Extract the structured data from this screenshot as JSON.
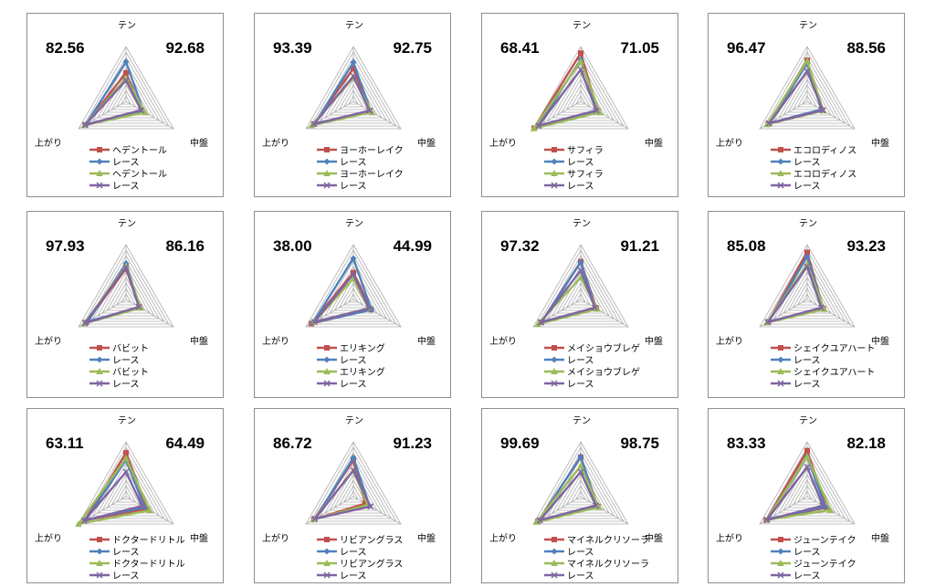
{
  "axes": [
    "テン",
    "中盤",
    "上がり"
  ],
  "series_colors": [
    "#c0504d",
    "#4f81bd",
    "#9bbb59",
    "#8064a2"
  ],
  "panels": [
    {
      "left_value": "82.56",
      "right_value": "92.68",
      "legend": [
        "ヘデントール",
        "レース",
        "ヘデントール",
        "レース"
      ]
    },
    {
      "left_value": "93.39",
      "right_value": "92.75",
      "legend": [
        "ヨーホーレイク",
        "レース",
        "ヨーホーレイク",
        "レース"
      ]
    },
    {
      "left_value": "68.41",
      "right_value": "71.05",
      "legend": [
        "サフィラ",
        "レース",
        "サフィラ",
        "レース"
      ]
    },
    {
      "left_value": "96.47",
      "right_value": "88.56",
      "legend": [
        "エコロディノス",
        "レース",
        "エコロディノス",
        "レース"
      ]
    },
    {
      "left_value": "97.93",
      "right_value": "86.16",
      "legend": [
        "バビット",
        "レース",
        "バビット",
        "レース"
      ]
    },
    {
      "left_value": "38.00",
      "right_value": "44.99",
      "legend": [
        "エリキング",
        "レース",
        "エリキング",
        "レース"
      ]
    },
    {
      "left_value": "97.32",
      "right_value": "91.21",
      "legend": [
        "メイショウブレゲ",
        "レース",
        "メイショウブレゲ",
        "レース"
      ]
    },
    {
      "left_value": "85.08",
      "right_value": "93.23",
      "legend": [
        "シェイクユアハート",
        "レース",
        "シェイクユアハート",
        "レース"
      ]
    },
    {
      "left_value": "63.11",
      "right_value": "64.49",
      "legend": [
        "ドクタードリトル",
        "レース",
        "ドクタードリトル",
        "レース"
      ]
    },
    {
      "left_value": "86.72",
      "right_value": "91.23",
      "legend": [
        "リビアングラス",
        "レース",
        "リビアングラス",
        "レース"
      ]
    },
    {
      "left_value": "99.69",
      "right_value": "98.75",
      "legend": [
        "マイネルクリソーラ",
        "レース",
        "マイネルクリソーラ",
        "レース"
      ]
    },
    {
      "left_value": "83.33",
      "right_value": "82.18",
      "legend": [
        "ジューンテイク",
        "レース",
        "ジューンテイク",
        "レース"
      ]
    }
  ],
  "chart_data": {
    "type": "radar",
    "axes": [
      "テン",
      "中盤",
      "上がり"
    ],
    "scale_max": 10,
    "charts": [
      {
        "series": [
          {
            "name": "ヘデントール",
            "values": [
              5.2,
              3.3,
              8.6
            ]
          },
          {
            "name": "レース",
            "values": [
              7.2,
              3.7,
              8.5
            ]
          },
          {
            "name": "ヘデントール",
            "values": [
              4.2,
              4.0,
              8.7
            ]
          },
          {
            "name": "レース",
            "values": [
              3.8,
              3.2,
              8.6
            ]
          }
        ]
      },
      {
        "series": [
          {
            "name": "ヨーホーレイク",
            "values": [
              6.0,
              3.5,
              8.3
            ]
          },
          {
            "name": "レース",
            "values": [
              7.1,
              3.7,
              8.2
            ]
          },
          {
            "name": "ヨーホーレイク",
            "values": [
              4.3,
              3.9,
              8.8
            ]
          },
          {
            "name": "レース",
            "values": [
              4.6,
              3.4,
              8.3
            ]
          }
        ]
      },
      {
        "series": [
          {
            "name": "サフィラ",
            "values": [
              8.8,
              3.6,
              9.8
            ]
          },
          {
            "name": "レース",
            "values": [
              7.6,
              3.6,
              9.0
            ]
          },
          {
            "name": "サフィラ",
            "values": [
              7.3,
              4.0,
              9.9
            ]
          },
          {
            "name": "レース",
            "values": [
              5.8,
              3.3,
              8.9
            ]
          }
        ]
      },
      {
        "series": [
          {
            "name": "エコロディノス",
            "values": [
              7.5,
              3.0,
              8.2
            ]
          },
          {
            "name": "レース",
            "values": [
              6.9,
              3.0,
              8.0
            ]
          },
          {
            "name": "エコロディノス",
            "values": [
              7.4,
              3.4,
              8.4
            ]
          },
          {
            "name": "レース",
            "values": [
              5.5,
              3.3,
              8.0
            ]
          }
        ]
      },
      {
        "series": [
          {
            "name": "バビット",
            "values": [
              5.6,
              2.8,
              8.4
            ]
          },
          {
            "name": "レース",
            "values": [
              6.6,
              2.9,
              8.0
            ]
          },
          {
            "name": "バビット",
            "values": [
              6.1,
              3.1,
              8.8
            ]
          },
          {
            "name": "レース",
            "values": [
              5.9,
              2.7,
              8.6
            ]
          }
        ]
      },
      {
        "series": [
          {
            "name": "エリキング",
            "values": [
              4.9,
              3.7,
              8.8
            ]
          },
          {
            "name": "レース",
            "values": [
              7.5,
              3.8,
              8.5
            ]
          },
          {
            "name": "エリキング",
            "values": [
              3.8,
              3.2,
              8.3
            ]
          },
          {
            "name": "レース",
            "values": [
              4.6,
              3.3,
              8.2
            ]
          }
        ]
      },
      {
        "series": [
          {
            "name": "メイショウブレゲ",
            "values": [
              6.9,
              3.3,
              8.3
            ]
          },
          {
            "name": "レース",
            "values": [
              6.8,
              3.1,
              8.2
            ]
          },
          {
            "name": "メイショウブレゲ",
            "values": [
              4.0,
              3.5,
              9.0
            ]
          },
          {
            "name": "レース",
            "values": [
              5.3,
              3.0,
              8.4
            ]
          }
        ]
      },
      {
        "series": [
          {
            "name": "シェイクユアハート",
            "values": [
              8.6,
              3.4,
              8.2
            ]
          },
          {
            "name": "レース",
            "values": [
              7.8,
              3.4,
              8.1
            ]
          },
          {
            "name": "シェイクユアハート",
            "values": [
              6.4,
              3.6,
              8.5
            ]
          },
          {
            "name": "レース",
            "values": [
              6.0,
              3.0,
              8.3
            ]
          }
        ]
      },
      {
        "series": [
          {
            "name": "ドクタードリトル",
            "values": [
              8.0,
              4.5,
              8.6
            ]
          },
          {
            "name": "レース",
            "values": [
              6.7,
              3.9,
              8.5
            ]
          },
          {
            "name": "ドクタードリトル",
            "values": [
              7.0,
              5.0,
              10.0
            ]
          },
          {
            "name": "レース",
            "values": [
              4.5,
              3.4,
              8.8
            ]
          }
        ]
      },
      {
        "series": [
          {
            "name": "リビアングラス",
            "values": [
              6.6,
              2.5,
              8.3
            ]
          },
          {
            "name": "レース",
            "values": [
              7.1,
              3.4,
              8.0
            ]
          },
          {
            "name": "リビアングラス",
            "values": [
              4.7,
              3.0,
              8.4
            ]
          },
          {
            "name": "レース",
            "values": [
              4.8,
              3.6,
              8.1
            ]
          }
        ]
      },
      {
        "series": [
          {
            "name": "マイネルクリソーラ",
            "values": [
              7.2,
              3.6,
              9.0
            ]
          },
          {
            "name": "レース",
            "values": [
              7.3,
              3.5,
              8.8
            ]
          },
          {
            "name": "マイネルクリソーラ",
            "values": [
              5.6,
              3.8,
              9.3
            ]
          },
          {
            "name": "レース",
            "values": [
              4.5,
              3.2,
              8.6
            ]
          }
        ]
      },
      {
        "series": [
          {
            "name": "ジューンテイク",
            "values": [
              8.4,
              4.0,
              8.6
            ]
          },
          {
            "name": "レース",
            "values": [
              7.3,
              3.8,
              8.2
            ]
          },
          {
            "name": "ジューンテイク",
            "values": [
              7.3,
              4.9,
              8.5
            ]
          },
          {
            "name": "レース",
            "values": [
              5.4,
              3.3,
              8.5
            ]
          }
        ]
      }
    ]
  }
}
